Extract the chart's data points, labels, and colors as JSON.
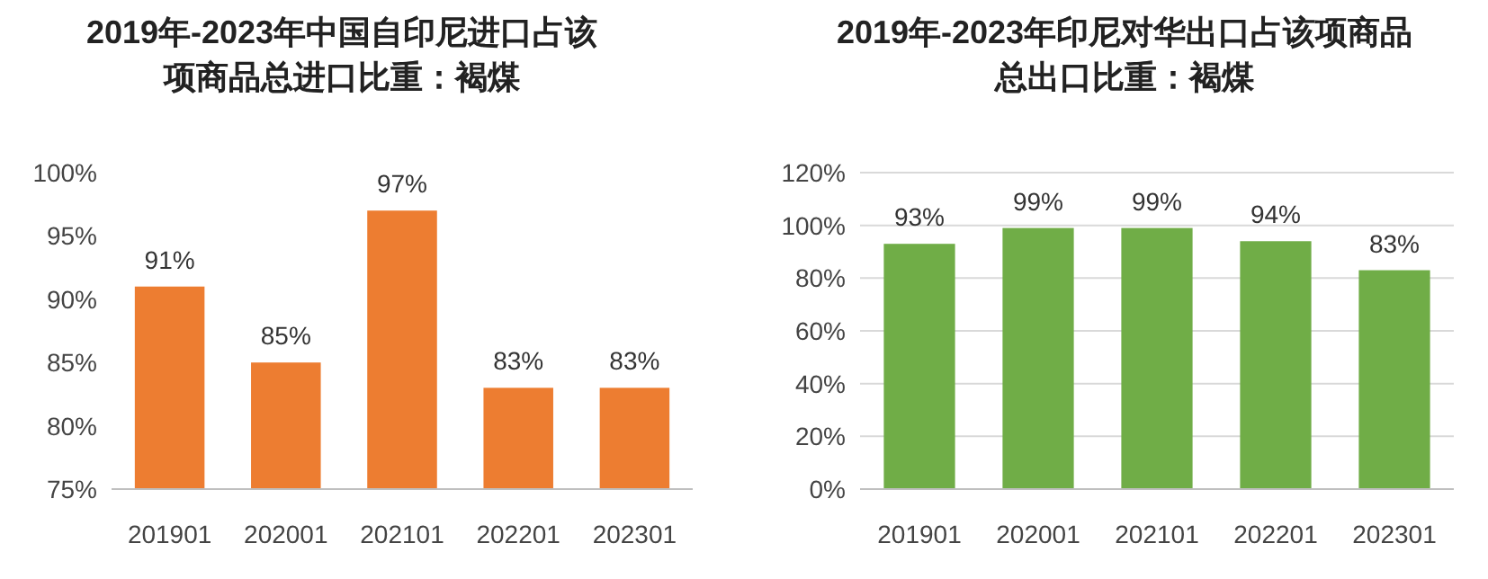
{
  "chart_data": [
    {
      "type": "bar",
      "title": "2019年-2023年中国自印尼进口占该项商品总进口比重：褐煤",
      "categories": [
        "201901",
        "202001",
        "202101",
        "202201",
        "202301"
      ],
      "values": [
        91,
        85,
        97,
        83,
        83
      ],
      "value_labels": [
        "91%",
        "85%",
        "97%",
        "83%",
        "83%"
      ],
      "color": "#ed7d31",
      "ylim": [
        75,
        100
      ],
      "yticks": [
        {
          "value": 75,
          "label": "75%"
        },
        {
          "value": 80,
          "label": "80%"
        },
        {
          "value": 85,
          "label": "85%"
        },
        {
          "value": 90,
          "label": "90%"
        },
        {
          "value": 95,
          "label": "95%"
        },
        {
          "value": 100,
          "label": "100%"
        }
      ],
      "grid": false
    },
    {
      "type": "bar",
      "title": "2019年-2023年印尼对华出口占该项商品总出口比重：褐煤",
      "categories": [
        "201901",
        "202001",
        "202101",
        "202201",
        "202301"
      ],
      "values": [
        93,
        99,
        99,
        94,
        83
      ],
      "value_labels": [
        "93%",
        "99%",
        "99%",
        "94%",
        "83%"
      ],
      "color": "#70ad47",
      "ylim": [
        0,
        120
      ],
      "yticks": [
        {
          "value": 0,
          "label": "0%"
        },
        {
          "value": 20,
          "label": "20%"
        },
        {
          "value": 40,
          "label": "40%"
        },
        {
          "value": 60,
          "label": "60%"
        },
        {
          "value": 80,
          "label": "80%"
        },
        {
          "value": 100,
          "label": "100%"
        },
        {
          "value": 120,
          "label": "120%"
        }
      ],
      "grid": "y"
    }
  ]
}
